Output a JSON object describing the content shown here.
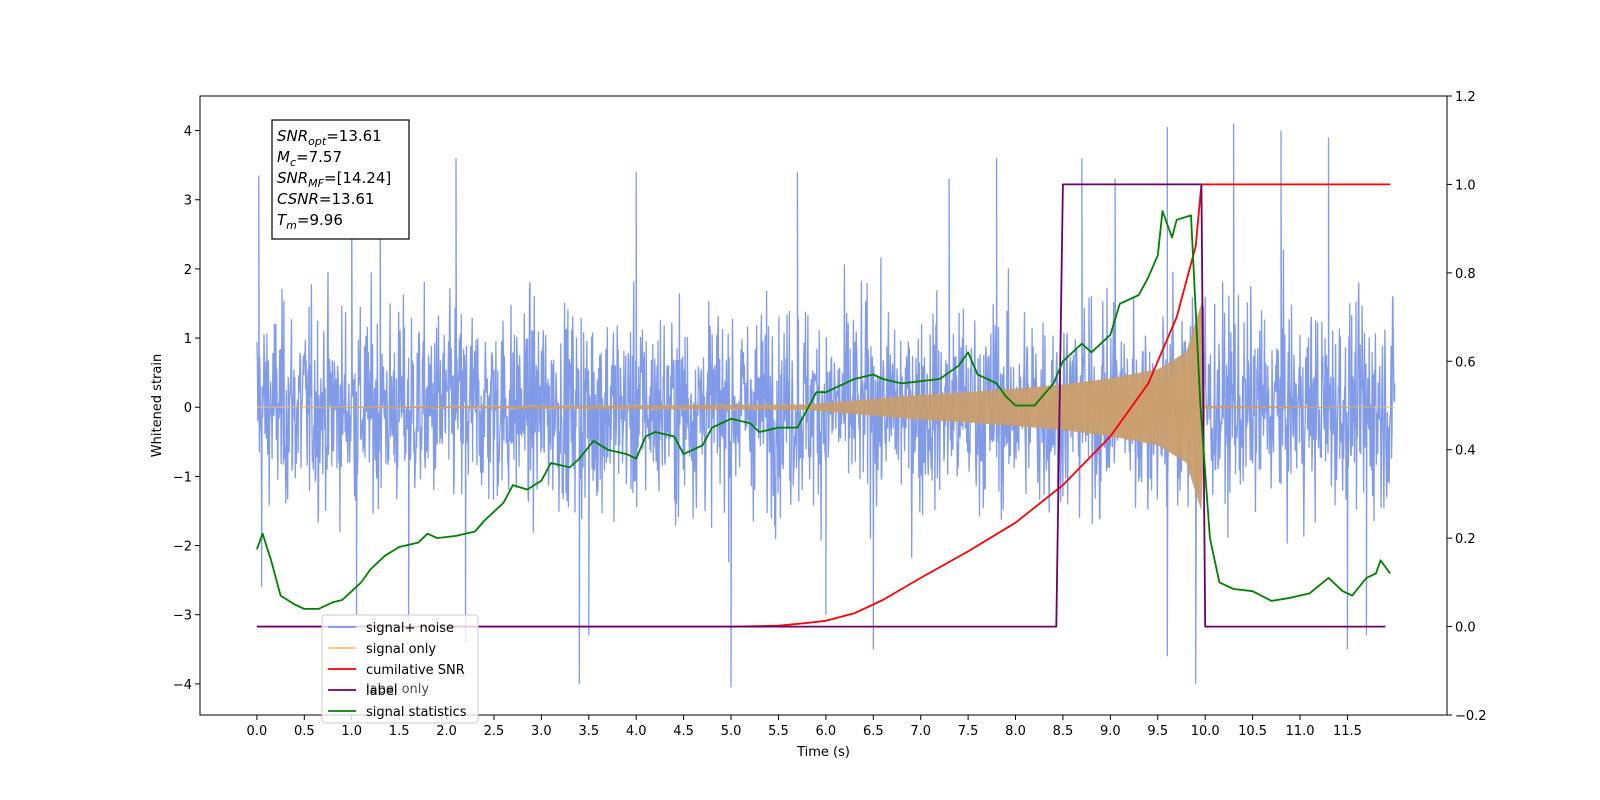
{
  "chart_data": {
    "type": "line",
    "xlabel": "Time (s)",
    "ylabel": "Whitened strain",
    "xlim": [
      -0.6,
      12.55
    ],
    "ylim": [
      -4.45,
      4.5
    ],
    "y2lim": [
      -0.2,
      1.2
    ],
    "x_ticks": [
      "0.0",
      "0.5",
      "1.0",
      "1.5",
      "2.0",
      "2.5",
      "3.0",
      "3.5",
      "4.0",
      "4.5",
      "5.0",
      "5.5",
      "6.0",
      "6.5",
      "7.0",
      "7.5",
      "8.0",
      "8.5",
      "9.0",
      "9.5",
      "10.0",
      "10.5",
      "11.0",
      "11.5"
    ],
    "y_ticks": [
      4,
      3,
      2,
      1,
      0,
      -1,
      -2,
      -3,
      -4
    ],
    "y2_ticks": [
      "1.2",
      "1.0",
      "0.8",
      "0.6",
      "0.4",
      "0.2",
      "0.0",
      "−0.2"
    ],
    "annotation": [
      {
        "base": "SNR",
        "sub": "opt",
        "value": "=13.61"
      },
      {
        "base": "M",
        "sub": "c",
        "value": "=7.57"
      },
      {
        "base": "SNR",
        "sub": "MF",
        "value": "=[14.24]"
      },
      {
        "base": "CSNR",
        "sub": "",
        "value": "=13.61"
      },
      {
        "base": "T",
        "sub": "m",
        "value": "=9.96"
      }
    ],
    "legend": {
      "placement": "lower-left",
      "entries": [
        {
          "label": "signal+ noise",
          "color": "#7b96e8"
        },
        {
          "label": "signal only",
          "color": "#ffc06b"
        },
        {
          "label": "cumilative SNR",
          "color": "#ff0000"
        },
        {
          "label": "label",
          "color": "#6a006a"
        },
        {
          "label": "signal statistics",
          "color": "#008000"
        }
      ],
      "ghost_labels": [
        "label only"
      ]
    },
    "series": [
      {
        "name": "signal+ noise",
        "axis": "left",
        "color": "#7b96e8",
        "style": "dense noise, approx ±1.0 rms, t 0–12 s",
        "x_range": [
          0,
          12
        ],
        "peaks": [
          {
            "x": 0.02,
            "y": 3.35
          },
          {
            "x": 0.05,
            "y": -2.6
          },
          {
            "x": 1.0,
            "y": 3.1
          },
          {
            "x": 1.05,
            "y": -3.0
          },
          {
            "x": 1.3,
            "y": 3.3
          },
          {
            "x": 1.6,
            "y": -3.1
          },
          {
            "x": 2.1,
            "y": 3.6
          },
          {
            "x": 2.2,
            "y": -3.4
          },
          {
            "x": 3.4,
            "y": -4.0
          },
          {
            "x": 3.5,
            "y": -3.3
          },
          {
            "x": 4.0,
            "y": 3.4
          },
          {
            "x": 5.0,
            "y": -4.05
          },
          {
            "x": 5.7,
            "y": 3.4
          },
          {
            "x": 6.0,
            "y": -3.0
          },
          {
            "x": 6.5,
            "y": -3.5
          },
          {
            "x": 7.3,
            "y": 3.3
          },
          {
            "x": 7.8,
            "y": 3.6
          },
          {
            "x": 8.7,
            "y": 3.6
          },
          {
            "x": 9.05,
            "y": 3.3
          },
          {
            "x": 9.6,
            "y": 4.05
          },
          {
            "x": 9.6,
            "y": -3.6
          },
          {
            "x": 9.9,
            "y": -4.0
          },
          {
            "x": 10.3,
            "y": 4.1
          },
          {
            "x": 10.8,
            "y": 4.0
          },
          {
            "x": 11.3,
            "y": 3.9
          },
          {
            "x": 11.5,
            "y": -3.5
          },
          {
            "x": 11.7,
            "y": -3.3
          }
        ]
      },
      {
        "name": "signal only",
        "axis": "left",
        "color": "#ffc06b",
        "style": "chirp, flat before ~5.7 s, envelope grows to merger at 9.96 s",
        "envelope": [
          {
            "x": 0.0,
            "y": 0.0
          },
          {
            "x": 5.8,
            "y": 0.04
          },
          {
            "x": 6.5,
            "y": 0.12
          },
          {
            "x": 7.0,
            "y": 0.18
          },
          {
            "x": 7.5,
            "y": 0.22
          },
          {
            "x": 8.0,
            "y": 0.27
          },
          {
            "x": 8.5,
            "y": 0.33
          },
          {
            "x": 9.0,
            "y": 0.42
          },
          {
            "x": 9.5,
            "y": 0.55
          },
          {
            "x": 9.8,
            "y": 0.8
          },
          {
            "x": 9.96,
            "y": 1.5
          },
          {
            "x": 10.0,
            "y": 0.02
          },
          {
            "x": 12.0,
            "y": 0.0
          }
        ]
      },
      {
        "name": "cumilative SNR",
        "axis": "right",
        "color": "#ff0000",
        "points": [
          {
            "x": 0.0,
            "y": 0.0
          },
          {
            "x": 5.0,
            "y": 0.0
          },
          {
            "x": 5.5,
            "y": 0.002
          },
          {
            "x": 5.8,
            "y": 0.008
          },
          {
            "x": 6.0,
            "y": 0.013
          },
          {
            "x": 6.3,
            "y": 0.03
          },
          {
            "x": 6.6,
            "y": 0.06
          },
          {
            "x": 7.0,
            "y": 0.11
          },
          {
            "x": 7.5,
            "y": 0.17
          },
          {
            "x": 8.0,
            "y": 0.235
          },
          {
            "x": 8.5,
            "y": 0.32
          },
          {
            "x": 9.0,
            "y": 0.43
          },
          {
            "x": 9.4,
            "y": 0.55
          },
          {
            "x": 9.7,
            "y": 0.7
          },
          {
            "x": 9.9,
            "y": 0.86
          },
          {
            "x": 9.96,
            "y": 1.0
          },
          {
            "x": 11.95,
            "y": 1.0
          }
        ]
      },
      {
        "name": "label",
        "axis": "right",
        "color": "#6a006a",
        "points": [
          {
            "x": 0.0,
            "y": 0.0
          },
          {
            "x": 8.43,
            "y": 0.0
          },
          {
            "x": 8.5,
            "y": 1.0
          },
          {
            "x": 9.96,
            "y": 1.0
          },
          {
            "x": 10.0,
            "y": 0.0
          },
          {
            "x": 11.9,
            "y": 0.0
          }
        ]
      },
      {
        "name": "signal statistics",
        "axis": "right",
        "color": "#008000",
        "points": [
          {
            "x": 0.0,
            "y": 0.175
          },
          {
            "x": 0.06,
            "y": 0.21
          },
          {
            "x": 0.15,
            "y": 0.15
          },
          {
            "x": 0.25,
            "y": 0.07
          },
          {
            "x": 0.4,
            "y": 0.05
          },
          {
            "x": 0.5,
            "y": 0.04
          },
          {
            "x": 0.65,
            "y": 0.04
          },
          {
            "x": 0.8,
            "y": 0.055
          },
          {
            "x": 0.9,
            "y": 0.06
          },
          {
            "x": 1.0,
            "y": 0.08
          },
          {
            "x": 1.1,
            "y": 0.1
          },
          {
            "x": 1.2,
            "y": 0.13
          },
          {
            "x": 1.35,
            "y": 0.16
          },
          {
            "x": 1.5,
            "y": 0.18
          },
          {
            "x": 1.7,
            "y": 0.19
          },
          {
            "x": 1.8,
            "y": 0.21
          },
          {
            "x": 1.9,
            "y": 0.2
          },
          {
            "x": 2.1,
            "y": 0.205
          },
          {
            "x": 2.3,
            "y": 0.215
          },
          {
            "x": 2.4,
            "y": 0.24
          },
          {
            "x": 2.6,
            "y": 0.28
          },
          {
            "x": 2.7,
            "y": 0.32
          },
          {
            "x": 2.85,
            "y": 0.31
          },
          {
            "x": 3.0,
            "y": 0.33
          },
          {
            "x": 3.1,
            "y": 0.37
          },
          {
            "x": 3.3,
            "y": 0.36
          },
          {
            "x": 3.4,
            "y": 0.38
          },
          {
            "x": 3.55,
            "y": 0.42
          },
          {
            "x": 3.7,
            "y": 0.4
          },
          {
            "x": 3.9,
            "y": 0.39
          },
          {
            "x": 4.0,
            "y": 0.38
          },
          {
            "x": 4.1,
            "y": 0.43
          },
          {
            "x": 4.2,
            "y": 0.44
          },
          {
            "x": 4.4,
            "y": 0.43
          },
          {
            "x": 4.5,
            "y": 0.39
          },
          {
            "x": 4.7,
            "y": 0.41
          },
          {
            "x": 4.8,
            "y": 0.45
          },
          {
            "x": 5.0,
            "y": 0.47
          },
          {
            "x": 5.2,
            "y": 0.46
          },
          {
            "x": 5.3,
            "y": 0.44
          },
          {
            "x": 5.5,
            "y": 0.45
          },
          {
            "x": 5.7,
            "y": 0.45
          },
          {
            "x": 5.8,
            "y": 0.49
          },
          {
            "x": 5.9,
            "y": 0.53
          },
          {
            "x": 6.0,
            "y": 0.53
          },
          {
            "x": 6.2,
            "y": 0.55
          },
          {
            "x": 6.3,
            "y": 0.56
          },
          {
            "x": 6.4,
            "y": 0.565
          },
          {
            "x": 6.5,
            "y": 0.57
          },
          {
            "x": 6.6,
            "y": 0.56
          },
          {
            "x": 6.8,
            "y": 0.55
          },
          {
            "x": 7.0,
            "y": 0.555
          },
          {
            "x": 7.2,
            "y": 0.56
          },
          {
            "x": 7.4,
            "y": 0.59
          },
          {
            "x": 7.5,
            "y": 0.62
          },
          {
            "x": 7.6,
            "y": 0.57
          },
          {
            "x": 7.8,
            "y": 0.55
          },
          {
            "x": 7.9,
            "y": 0.52
          },
          {
            "x": 8.0,
            "y": 0.5
          },
          {
            "x": 8.2,
            "y": 0.5
          },
          {
            "x": 8.4,
            "y": 0.55
          },
          {
            "x": 8.5,
            "y": 0.6
          },
          {
            "x": 8.7,
            "y": 0.64
          },
          {
            "x": 8.8,
            "y": 0.62
          },
          {
            "x": 9.0,
            "y": 0.66
          },
          {
            "x": 9.1,
            "y": 0.73
          },
          {
            "x": 9.3,
            "y": 0.75
          },
          {
            "x": 9.4,
            "y": 0.79
          },
          {
            "x": 9.5,
            "y": 0.84
          },
          {
            "x": 9.55,
            "y": 0.94
          },
          {
            "x": 9.65,
            "y": 0.88
          },
          {
            "x": 9.7,
            "y": 0.92
          },
          {
            "x": 9.85,
            "y": 0.93
          },
          {
            "x": 9.95,
            "y": 0.5
          },
          {
            "x": 10.05,
            "y": 0.2
          },
          {
            "x": 10.15,
            "y": 0.1
          },
          {
            "x": 10.3,
            "y": 0.085
          },
          {
            "x": 10.5,
            "y": 0.08
          },
          {
            "x": 10.7,
            "y": 0.058
          },
          {
            "x": 10.9,
            "y": 0.065
          },
          {
            "x": 11.1,
            "y": 0.075
          },
          {
            "x": 11.3,
            "y": 0.11
          },
          {
            "x": 11.45,
            "y": 0.08
          },
          {
            "x": 11.55,
            "y": 0.07
          },
          {
            "x": 11.7,
            "y": 0.11
          },
          {
            "x": 11.8,
            "y": 0.12
          },
          {
            "x": 11.85,
            "y": 0.15
          },
          {
            "x": 11.95,
            "y": 0.12
          }
        ]
      }
    ]
  }
}
